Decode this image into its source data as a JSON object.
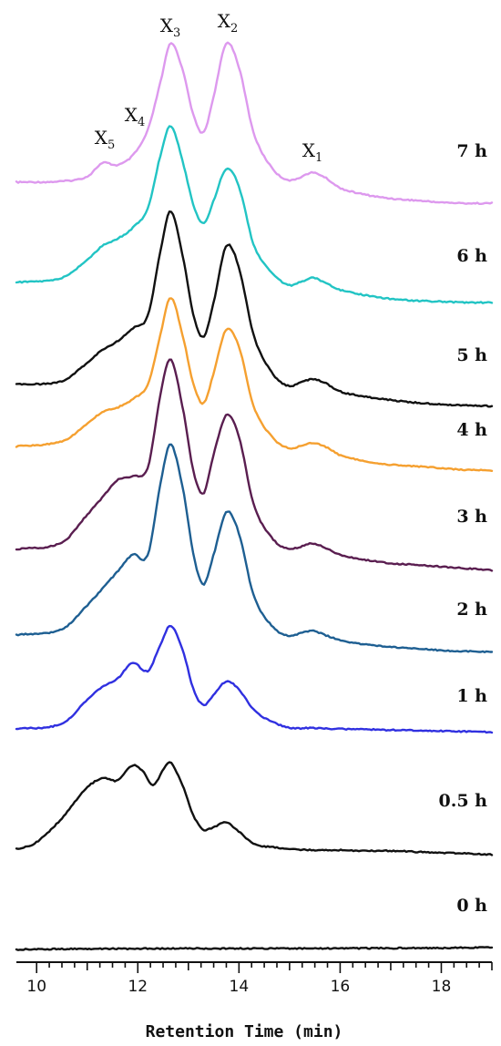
{
  "chart_data": {
    "type": "line",
    "title": "",
    "xlabel": "Retention Time (min)",
    "ylabel": "",
    "xlim": [
      9.6,
      19.0
    ],
    "x_ticks": [
      10,
      12,
      14,
      16,
      18
    ],
    "peak_labels": [
      {
        "label": "X",
        "sub": "5",
        "x": 11.3
      },
      {
        "label": "X",
        "sub": "4",
        "x": 11.8
      },
      {
        "label": "X",
        "sub": "3",
        "x": 12.65
      },
      {
        "label": "X",
        "sub": "2",
        "x": 13.75
      },
      {
        "label": "X",
        "sub": "1",
        "x": 15.45
      }
    ],
    "series": [
      {
        "name": "7 h",
        "color": "#dd99ee",
        "x": [
          9.6,
          10.5,
          11.0,
          11.3,
          11.6,
          11.9,
          12.2,
          12.45,
          12.65,
          12.9,
          13.1,
          13.3,
          13.5,
          13.75,
          14.0,
          14.3,
          14.7,
          15.0,
          15.2,
          15.45,
          15.7,
          16.0,
          16.5,
          17.0,
          17.5,
          18.0,
          18.5,
          19.0
        ],
        "y": [
          0.0,
          0.01,
          0.06,
          0.2,
          0.18,
          0.28,
          0.55,
          1.05,
          1.45,
          1.15,
          0.7,
          0.52,
          0.9,
          1.45,
          1.2,
          0.5,
          0.12,
          0.02,
          0.05,
          0.1,
          0.05,
          -0.06,
          -0.13,
          -0.17,
          -0.19,
          -0.21,
          -0.22,
          -0.22
        ]
      },
      {
        "name": "6 h",
        "color": "#22c4c4",
        "x": [
          9.6,
          10.5,
          11.0,
          11.3,
          11.6,
          11.9,
          12.2,
          12.45,
          12.65,
          12.9,
          13.1,
          13.3,
          13.5,
          13.75,
          14.0,
          14.3,
          14.7,
          15.0,
          15.2,
          15.45,
          15.7,
          16.0,
          16.5,
          17.0,
          17.5,
          18.0,
          18.5,
          19.0
        ],
        "y": [
          0.0,
          0.05,
          0.25,
          0.4,
          0.48,
          0.6,
          0.82,
          1.4,
          1.72,
          1.3,
          0.85,
          0.65,
          0.9,
          1.25,
          1.05,
          0.4,
          0.08,
          -0.03,
          0.0,
          0.05,
          0.0,
          -0.08,
          -0.14,
          -0.18,
          -0.2,
          -0.21,
          -0.22,
          -0.22
        ]
      },
      {
        "name": "5 h",
        "color": "#111111",
        "x": [
          9.6,
          10.5,
          11.0,
          11.3,
          11.6,
          11.9,
          12.2,
          12.45,
          12.65,
          12.9,
          13.1,
          13.3,
          13.5,
          13.75,
          14.0,
          14.3,
          14.7,
          15.0,
          15.2,
          15.45,
          15.7,
          16.0,
          16.5,
          17.0,
          17.5,
          18.0,
          18.5,
          19.0
        ],
        "y": [
          0.0,
          0.04,
          0.25,
          0.4,
          0.5,
          0.65,
          0.8,
          1.55,
          2.0,
          1.45,
          0.8,
          0.55,
          0.95,
          1.6,
          1.35,
          0.55,
          0.1,
          -0.02,
          0.02,
          0.06,
          0.02,
          -0.08,
          -0.14,
          -0.18,
          -0.21,
          -0.23,
          -0.24,
          -0.25
        ]
      },
      {
        "name": "4 h",
        "color": "#f5a030",
        "x": [
          9.6,
          10.5,
          11.0,
          11.3,
          11.6,
          11.9,
          12.2,
          12.45,
          12.65,
          12.9,
          13.1,
          13.3,
          13.5,
          13.75,
          14.0,
          14.3,
          14.7,
          15.0,
          15.2,
          15.45,
          15.7,
          16.0,
          16.5,
          17.0,
          17.5,
          18.0,
          18.5,
          19.0
        ],
        "y": [
          0.0,
          0.06,
          0.26,
          0.4,
          0.45,
          0.55,
          0.72,
          1.3,
          1.72,
          1.25,
          0.72,
          0.5,
          0.85,
          1.35,
          1.15,
          0.45,
          0.08,
          -0.02,
          0.0,
          0.04,
          0.0,
          -0.1,
          -0.17,
          -0.21,
          -0.23,
          -0.25,
          -0.27,
          -0.28
        ]
      },
      {
        "name": "3 h",
        "color": "#5a1e50",
        "x": [
          9.6,
          10.5,
          11.0,
          11.3,
          11.6,
          11.9,
          12.2,
          12.45,
          12.65,
          12.9,
          13.1,
          13.3,
          13.5,
          13.75,
          14.0,
          14.3,
          14.7,
          15.0,
          15.2,
          15.45,
          15.7,
          16.0,
          16.5,
          17.0,
          17.5,
          18.0,
          18.5,
          19.0
        ],
        "y": [
          0.0,
          0.08,
          0.4,
          0.6,
          0.8,
          0.85,
          0.95,
          1.8,
          2.2,
          1.6,
          0.9,
          0.65,
          1.1,
          1.55,
          1.3,
          0.5,
          0.1,
          0.01,
          0.03,
          0.07,
          0.02,
          -0.06,
          -0.12,
          -0.16,
          -0.18,
          -0.2,
          -0.22,
          -0.24
        ]
      },
      {
        "name": "2 h",
        "color": "#1e5f92",
        "x": [
          9.6,
          10.5,
          11.0,
          11.3,
          11.6,
          11.9,
          12.2,
          12.45,
          12.65,
          12.9,
          13.1,
          13.3,
          13.5,
          13.75,
          14.0,
          14.3,
          14.7,
          15.0,
          15.2,
          15.45,
          15.7,
          16.0,
          16.5,
          17.0,
          17.5,
          18.0,
          18.5,
          19.0
        ],
        "y": [
          0.0,
          0.07,
          0.35,
          0.55,
          0.75,
          0.95,
          0.95,
          1.8,
          2.25,
          1.7,
          0.95,
          0.6,
          0.95,
          1.45,
          1.2,
          0.45,
          0.08,
          -0.01,
          0.02,
          0.05,
          0.0,
          -0.06,
          -0.11,
          -0.14,
          -0.16,
          -0.18,
          -0.19,
          -0.2
        ]
      },
      {
        "name": "1 h",
        "color": "#3030e0",
        "x": [
          9.6,
          10.5,
          11.0,
          11.3,
          11.6,
          11.9,
          12.2,
          12.45,
          12.65,
          12.9,
          13.1,
          13.3,
          13.5,
          13.75,
          14.0,
          14.3,
          14.7,
          15.0,
          15.2,
          15.45,
          15.7,
          16.0,
          16.5,
          17.0,
          17.5,
          18.0,
          18.5,
          19.0
        ],
        "y": [
          0.0,
          0.1,
          0.55,
          0.8,
          0.95,
          1.25,
          1.1,
          1.6,
          1.95,
          1.45,
          0.75,
          0.45,
          0.65,
          0.9,
          0.75,
          0.35,
          0.12,
          0.02,
          0.01,
          0.02,
          0.01,
          0.0,
          -0.01,
          -0.02,
          -0.03,
          -0.04,
          -0.05,
          -0.06
        ]
      },
      {
        "name": "0.5 h",
        "color": "#111111",
        "x": [
          9.6,
          10.0,
          10.5,
          11.0,
          11.3,
          11.6,
          11.9,
          12.1,
          12.3,
          12.5,
          12.65,
          12.9,
          13.1,
          13.3,
          13.5,
          13.75,
          14.0,
          14.3,
          14.7,
          15.0,
          15.5,
          16.0,
          16.5,
          17.0,
          17.5,
          18.0,
          18.5,
          19.0
        ],
        "y": [
          0.0,
          0.08,
          0.35,
          0.7,
          0.8,
          0.78,
          0.95,
          0.88,
          0.72,
          0.9,
          0.98,
          0.7,
          0.38,
          0.22,
          0.25,
          0.3,
          0.2,
          0.06,
          0.02,
          0.0,
          -0.01,
          -0.01,
          -0.02,
          -0.02,
          -0.03,
          -0.04,
          -0.05,
          -0.06
        ]
      },
      {
        "name": "0 h",
        "color": "#111111",
        "x": [
          9.6,
          10.5,
          11.5,
          12.5,
          13.5,
          14.5,
          15.5,
          16.5,
          17.5,
          18.5,
          19.0
        ],
        "y": [
          0.0,
          0.02,
          0.03,
          0.04,
          0.04,
          0.04,
          0.04,
          0.05,
          0.06,
          0.07,
          0.08
        ]
      }
    ]
  }
}
